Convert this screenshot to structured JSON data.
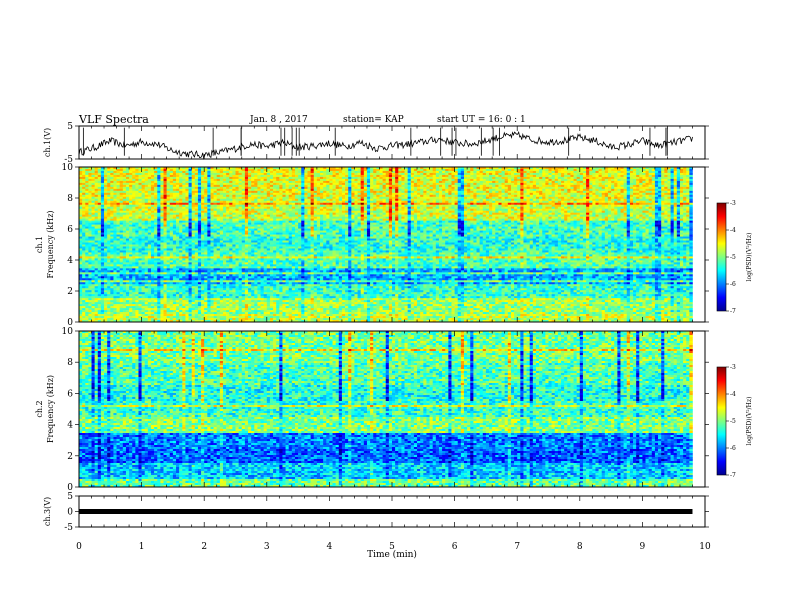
{
  "header": {
    "title": "VLF Spectra",
    "date": "Jan. 8 , 2017",
    "station": "station= KAP",
    "start_ut": "start UT =  16: 0  : 1"
  },
  "colorbar": {
    "label": "log(PSD)(V²/Hz)",
    "ticks": [
      "-3",
      "-4",
      "-5",
      "-6",
      "-7"
    ],
    "colors": [
      "#00008f",
      "#0000ff",
      "#0080ff",
      "#00ffff",
      "#80ff80",
      "#ffff00",
      "#ff8000",
      "#ff0000",
      "#800000"
    ]
  },
  "chart_data": [
    {
      "type": "line",
      "name": "ch1-waveform",
      "ylabel": "ch.1(V)",
      "xlabel": "",
      "xlim": [
        0,
        10
      ],
      "ylim": [
        -5,
        5
      ],
      "yticks": [
        "5",
        "-5"
      ],
      "x": [
        0.0,
        0.25,
        0.5,
        0.75,
        1.0,
        1.25,
        1.5,
        1.75,
        2.0,
        2.25,
        2.5,
        2.75,
        3.0,
        3.25,
        3.5,
        3.75,
        4.0,
        4.25,
        4.5,
        4.75,
        5.0,
        5.25,
        5.5,
        5.75,
        6.0,
        6.25,
        6.5,
        6.75,
        7.0,
        7.25,
        7.5,
        7.75,
        8.0,
        8.25,
        8.5,
        8.75,
        9.0,
        9.25,
        9.5,
        9.75,
        9.8
      ],
      "y": [
        -3.0,
        -1.5,
        0.5,
        -1.0,
        0.2,
        -0.5,
        -2.5,
        -3.5,
        -3.8,
        -3.0,
        -1.8,
        -0.5,
        -1.2,
        0.0,
        -1.5,
        -1.0,
        -0.2,
        -1.2,
        0.0,
        -1.8,
        -1.0,
        -0.5,
        0.2,
        1.0,
        0.0,
        -0.5,
        0.5,
        1.8,
        2.2,
        0.8,
        0.2,
        0.6,
        1.5,
        0.5,
        -1.5,
        -0.8,
        0.5,
        -1.0,
        0.0,
        1.0,
        1.2
      ]
    },
    {
      "type": "heatmap",
      "name": "ch1-spectrogram",
      "ylabel": "ch.1 Frequency (kHz)",
      "xlim": [
        0,
        10
      ],
      "ylim": [
        0,
        10
      ],
      "yticks": [
        "0",
        "2",
        "4",
        "6",
        "8",
        "10"
      ],
      "bands": [
        {
          "f0": 0.0,
          "f1": 0.5,
          "level": 4.5
        },
        {
          "f0": 0.5,
          "f1": 1.5,
          "level": 4.2
        },
        {
          "f0": 1.5,
          "f1": 2.5,
          "level": 3.4
        },
        {
          "f0": 2.5,
          "f1": 3.5,
          "level": 2.4
        },
        {
          "f0": 3.5,
          "f1": 4.5,
          "level": 3.6
        },
        {
          "f0": 4.5,
          "f1": 5.5,
          "level": 3.3
        },
        {
          "f0": 5.5,
          "f1": 6.5,
          "level": 3.5
        },
        {
          "f0": 6.5,
          "f1": 8.0,
          "level": 4.6
        },
        {
          "f0": 8.0,
          "f1": 10.0,
          "level": 4.8
        }
      ]
    },
    {
      "type": "heatmap",
      "name": "ch2-spectrogram",
      "ylabel": "ch.2 Frequency (kHz)",
      "xlim": [
        0,
        10
      ],
      "ylim": [
        0,
        10
      ],
      "yticks": [
        "0",
        "2",
        "4",
        "6",
        "8",
        "10"
      ],
      "bands": [
        {
          "f0": 0.0,
          "f1": 0.5,
          "level": 3.8
        },
        {
          "f0": 0.5,
          "f1": 1.5,
          "level": 2.6
        },
        {
          "f0": 1.5,
          "f1": 2.5,
          "level": 1.8
        },
        {
          "f0": 2.5,
          "f1": 3.5,
          "level": 2.0
        },
        {
          "f0": 3.5,
          "f1": 4.5,
          "level": 4.0
        },
        {
          "f0": 4.5,
          "f1": 5.5,
          "level": 3.4
        },
        {
          "f0": 5.5,
          "f1": 6.5,
          "level": 3.2
        },
        {
          "f0": 6.5,
          "f1": 8.0,
          "level": 3.6
        },
        {
          "f0": 8.0,
          "f1": 10.0,
          "level": 3.9
        }
      ]
    },
    {
      "type": "line",
      "name": "ch3-waveform",
      "ylabel": "ch.3(V)",
      "xlabel": "Time (min)",
      "xlim": [
        0,
        10
      ],
      "ylim": [
        -5,
        5
      ],
      "yticks": [
        "5",
        "0",
        "-5"
      ],
      "xticks": [
        "0",
        "1",
        "2",
        "3",
        "4",
        "5",
        "6",
        "7",
        "8",
        "9",
        "10"
      ],
      "x": [
        0.0,
        9.8
      ],
      "y": [
        0.0,
        0.0
      ]
    }
  ]
}
